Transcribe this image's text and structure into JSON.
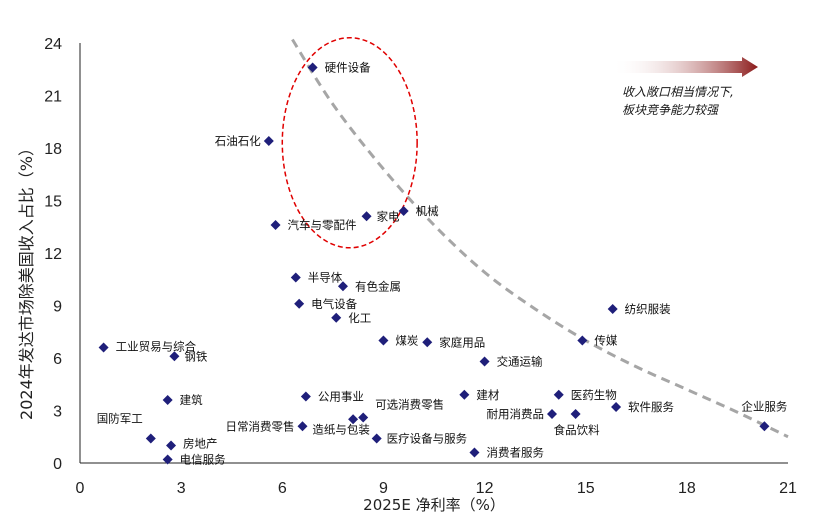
{
  "chart_data": {
    "type": "scatter",
    "xlabel": "2025E 净利率（%）",
    "ylabel": "2024年发达市场除美国收入占比（%）",
    "xlim": [
      0,
      21
    ],
    "ylim": [
      0,
      24
    ],
    "xticks": [
      "0",
      "3",
      "6",
      "9",
      "12",
      "15",
      "18",
      "21"
    ],
    "yticks": [
      "0",
      "3",
      "6",
      "9",
      "12",
      "15",
      "18",
      "21",
      "24"
    ],
    "grid": false,
    "marker_color": "#1f1f7a",
    "trend_color": "#a6a6a6",
    "highlight_color": "#e00000",
    "arrow_color": "#8b1a1a",
    "annotation": {
      "line1": "收入敞口相当情况下,",
      "line2": "板块竞争能力较强"
    },
    "points": [
      {
        "label": "硬件设备",
        "x": 6.9,
        "y": 22.6
      },
      {
        "label": "石油石化",
        "x": 5.6,
        "y": 18.4
      },
      {
        "label": "机械",
        "x": 9.6,
        "y": 14.4
      },
      {
        "label": "家电",
        "x": 8.5,
        "y": 14.1
      },
      {
        "label": "汽车与零配件",
        "x": 5.8,
        "y": 13.6
      },
      {
        "label": "半导体",
        "x": 6.4,
        "y": 10.6
      },
      {
        "label": "有色金属",
        "x": 7.8,
        "y": 10.1
      },
      {
        "label": "电气设备",
        "x": 6.5,
        "y": 9.1
      },
      {
        "label": "化工",
        "x": 7.6,
        "y": 8.3
      },
      {
        "label": "纺织服装",
        "x": 15.8,
        "y": 8.8
      },
      {
        "label": "煤炭",
        "x": 9.0,
        "y": 7.0
      },
      {
        "label": "家庭用品",
        "x": 10.3,
        "y": 6.9
      },
      {
        "label": "传媒",
        "x": 14.9,
        "y": 7.0
      },
      {
        "label": "工业贸易与综合",
        "x": 0.7,
        "y": 6.6
      },
      {
        "label": "钢铁",
        "x": 2.8,
        "y": 6.1
      },
      {
        "label": "交通运输",
        "x": 12.0,
        "y": 5.8
      },
      {
        "label": "建材",
        "x": 11.4,
        "y": 3.9
      },
      {
        "label": "医药生物",
        "x": 14.2,
        "y": 3.9
      },
      {
        "label": "建筑",
        "x": 2.6,
        "y": 3.6
      },
      {
        "label": "公用事业",
        "x": 6.7,
        "y": 3.8
      },
      {
        "label": "软件服务",
        "x": 15.9,
        "y": 3.2
      },
      {
        "label": "可选消费零售",
        "x": 8.4,
        "y": 2.6
      },
      {
        "label": "耐用消费品",
        "x": 14.0,
        "y": 2.8
      },
      {
        "label": "食品饮料",
        "x": 14.7,
        "y": 2.8
      },
      {
        "label": "造纸与包装",
        "x": 8.1,
        "y": 2.5
      },
      {
        "label": "日常消费零售",
        "x": 6.6,
        "y": 2.1
      },
      {
        "label": "医疗设备与服务",
        "x": 8.8,
        "y": 1.4
      },
      {
        "label": "国防军工",
        "x": 2.1,
        "y": 1.4
      },
      {
        "label": "房地产",
        "x": 2.7,
        "y": 1.0
      },
      {
        "label": "消费者服务",
        "x": 11.7,
        "y": 0.6
      },
      {
        "label": "电信服务",
        "x": 2.6,
        "y": 0.2
      },
      {
        "label": "企业服务",
        "x": 20.3,
        "y": 2.1
      }
    ],
    "trend_curve": [
      {
        "x": 6.3,
        "y": 24.2
      },
      {
        "x": 7.5,
        "y": 20.5
      },
      {
        "x": 9.0,
        "y": 16.8
      },
      {
        "x": 10.5,
        "y": 13.6
      },
      {
        "x": 12.0,
        "y": 10.9
      },
      {
        "x": 13.5,
        "y": 8.8
      },
      {
        "x": 15.0,
        "y": 7.0
      },
      {
        "x": 16.5,
        "y": 5.5
      },
      {
        "x": 18.0,
        "y": 4.2
      },
      {
        "x": 19.5,
        "y": 2.9
      },
      {
        "x": 21.0,
        "y": 1.5
      }
    ],
    "highlight_ellipse": {
      "cx": 8.0,
      "cy": 18.3,
      "rx": 2.0,
      "ry": 6.0
    }
  }
}
